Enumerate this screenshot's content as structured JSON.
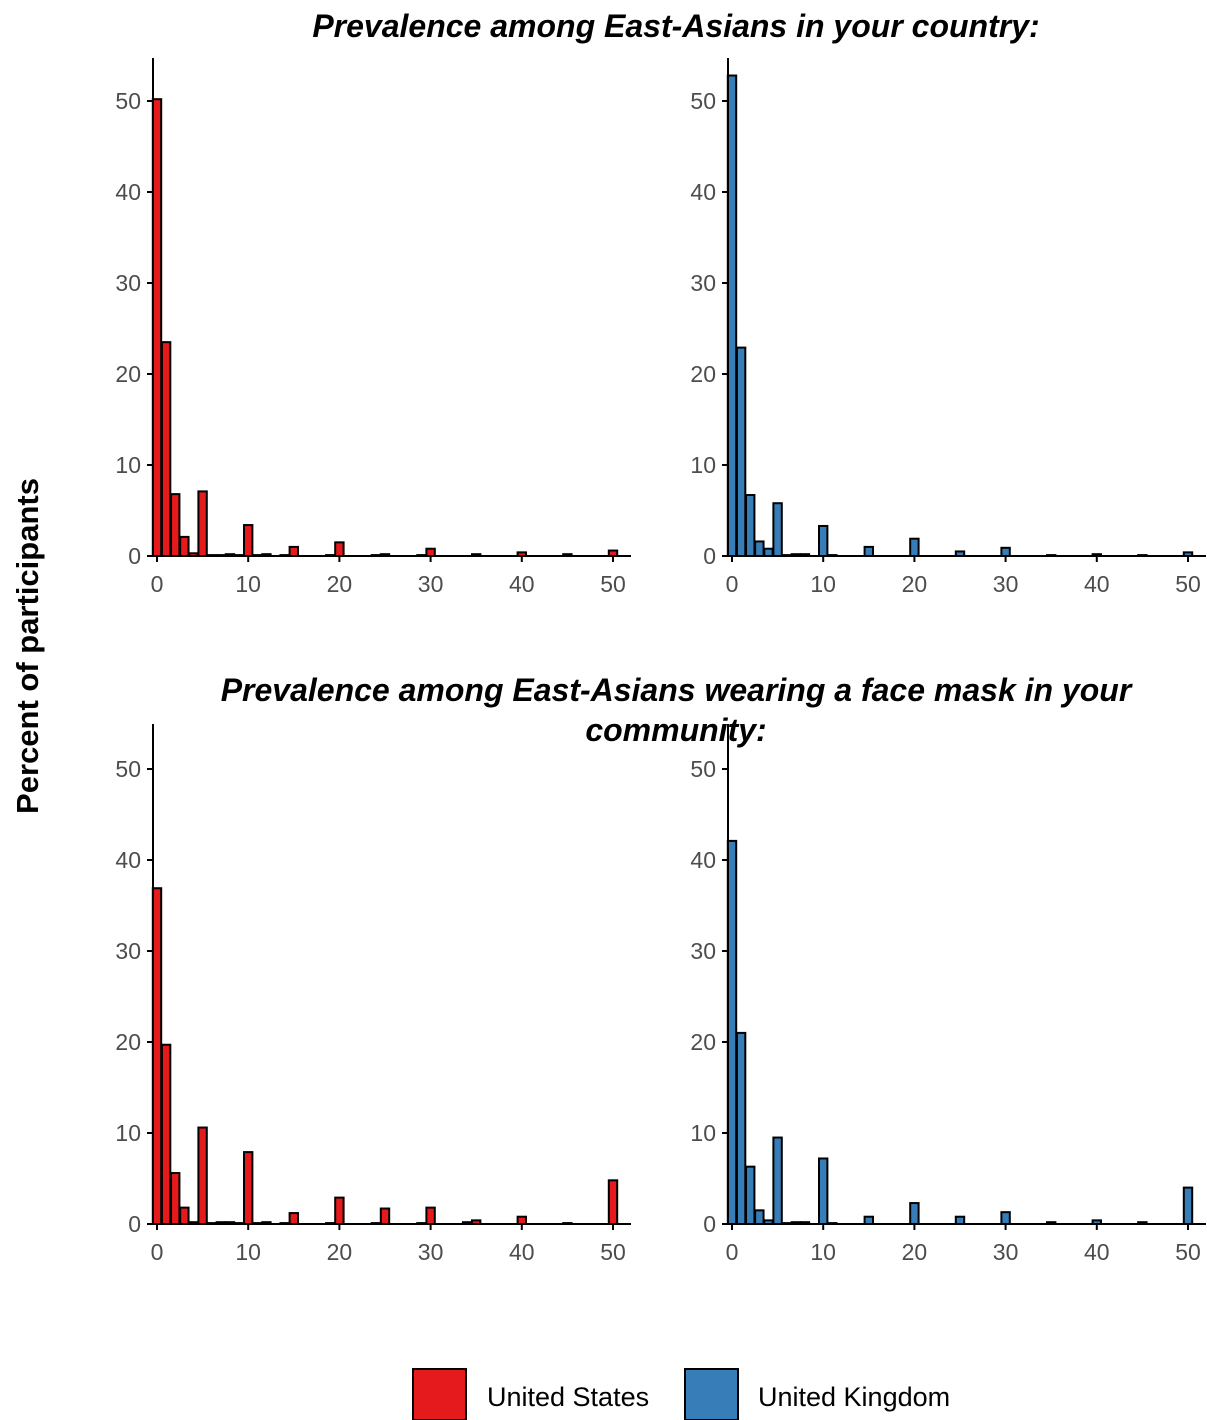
{
  "ylabel": "Percent of participants",
  "colors": {
    "United States": "#e41a1c",
    "United Kingdom": "#377eb8"
  },
  "legend": [
    {
      "name": "United States",
      "color": "#e41a1c"
    },
    {
      "name": "United Kingdom",
      "color": "#377eb8"
    }
  ],
  "chart_data": [
    {
      "type": "bar",
      "title": "Prevalence among East-Asians in your country:",
      "series_name": "United States",
      "xlim": [
        0,
        50
      ],
      "ylim": [
        0,
        55
      ],
      "xticks": [
        "0",
        "10",
        "20",
        "30",
        "40",
        "50"
      ],
      "yticks": [
        "0",
        "10",
        "20",
        "30",
        "40",
        "50"
      ],
      "x": [
        0,
        1,
        2,
        3,
        4,
        5,
        6,
        7,
        8,
        9,
        10,
        11,
        12,
        13,
        14,
        15,
        16,
        17,
        18,
        19,
        20,
        21,
        22,
        23,
        24,
        25,
        26,
        27,
        28,
        29,
        30,
        31,
        32,
        33,
        34,
        35,
        36,
        37,
        38,
        39,
        40,
        41,
        42,
        43,
        44,
        45,
        46,
        47,
        48,
        49,
        50
      ],
      "values": [
        50.2,
        23.5,
        6.8,
        2.1,
        0.3,
        7.1,
        0.1,
        0.1,
        0.2,
        0.1,
        3.4,
        0.1,
        0.2,
        0,
        0.1,
        1.0,
        0,
        0,
        0,
        0.1,
        1.5,
        0,
        0,
        0,
        0.1,
        0.2,
        0,
        0,
        0,
        0.1,
        0.8,
        0,
        0,
        0,
        0,
        0.2,
        0,
        0,
        0,
        0,
        0.4,
        0,
        0,
        0,
        0,
        0.2,
        0,
        0,
        0,
        0,
        0.6
      ]
    },
    {
      "type": "bar",
      "title": "Prevalence among East-Asians in your country:",
      "series_name": "United Kingdom",
      "xlim": [
        0,
        50
      ],
      "ylim": [
        0,
        55
      ],
      "xticks": [
        "0",
        "10",
        "20",
        "30",
        "40",
        "50"
      ],
      "yticks": [
        "0",
        "10",
        "20",
        "30",
        "40",
        "50"
      ],
      "x": [
        0,
        1,
        2,
        3,
        4,
        5,
        6,
        7,
        8,
        9,
        10,
        11,
        12,
        13,
        14,
        15,
        16,
        17,
        18,
        19,
        20,
        21,
        22,
        23,
        24,
        25,
        26,
        27,
        28,
        29,
        30,
        31,
        32,
        33,
        34,
        35,
        36,
        37,
        38,
        39,
        40,
        41,
        42,
        43,
        44,
        45,
        46,
        47,
        48,
        49,
        50
      ],
      "values": [
        52.8,
        22.9,
        6.7,
        1.6,
        0.8,
        5.8,
        0.1,
        0.2,
        0.2,
        0,
        3.3,
        0.1,
        0,
        0,
        0,
        1.0,
        0,
        0,
        0,
        0,
        1.9,
        0,
        0,
        0,
        0,
        0.5,
        0,
        0,
        0,
        0,
        0.9,
        0,
        0,
        0,
        0,
        0.1,
        0,
        0,
        0,
        0,
        0.2,
        0,
        0,
        0,
        0,
        0.1,
        0,
        0,
        0,
        0,
        0.4
      ]
    },
    {
      "type": "bar",
      "title": "Prevalence among East-Asians wearing a face mask in your community:",
      "series_name": "United States",
      "xlim": [
        0,
        50
      ],
      "ylim": [
        0,
        55
      ],
      "xticks": [
        "0",
        "10",
        "20",
        "30",
        "40",
        "50"
      ],
      "yticks": [
        "0",
        "10",
        "20",
        "30",
        "40",
        "50"
      ],
      "x": [
        0,
        1,
        2,
        3,
        4,
        5,
        6,
        7,
        8,
        9,
        10,
        11,
        12,
        13,
        14,
        15,
        16,
        17,
        18,
        19,
        20,
        21,
        22,
        23,
        24,
        25,
        26,
        27,
        28,
        29,
        30,
        31,
        32,
        33,
        34,
        35,
        36,
        37,
        38,
        39,
        40,
        41,
        42,
        43,
        44,
        45,
        46,
        47,
        48,
        49,
        50
      ],
      "values": [
        36.9,
        19.7,
        5.6,
        1.8,
        0.2,
        10.6,
        0.1,
        0.2,
        0.2,
        0.1,
        7.9,
        0.1,
        0.2,
        0,
        0.1,
        1.2,
        0,
        0,
        0,
        0.1,
        2.9,
        0,
        0,
        0,
        0.1,
        1.7,
        0,
        0,
        0,
        0.1,
        1.8,
        0,
        0,
        0,
        0.2,
        0.4,
        0,
        0,
        0,
        0,
        0.8,
        0,
        0,
        0,
        0,
        0.1,
        0,
        0,
        0,
        0,
        4.8
      ]
    },
    {
      "type": "bar",
      "title": "Prevalence among East-Asians wearing a face mask in your community:",
      "series_name": "United Kingdom",
      "xlim": [
        0,
        50
      ],
      "ylim": [
        0,
        55
      ],
      "xticks": [
        "0",
        "10",
        "20",
        "30",
        "40",
        "50"
      ],
      "yticks": [
        "0",
        "10",
        "20",
        "30",
        "40",
        "50"
      ],
      "x": [
        0,
        1,
        2,
        3,
        4,
        5,
        6,
        7,
        8,
        9,
        10,
        11,
        12,
        13,
        14,
        15,
        16,
        17,
        18,
        19,
        20,
        21,
        22,
        23,
        24,
        25,
        26,
        27,
        28,
        29,
        30,
        31,
        32,
        33,
        34,
        35,
        36,
        37,
        38,
        39,
        40,
        41,
        42,
        43,
        44,
        45,
        46,
        47,
        48,
        49,
        50
      ],
      "values": [
        42.1,
        21.0,
        6.3,
        1.5,
        0.4,
        9.5,
        0.1,
        0.2,
        0.2,
        0,
        7.2,
        0.1,
        0,
        0,
        0,
        0.8,
        0,
        0,
        0,
        0,
        2.3,
        0,
        0,
        0,
        0,
        0.8,
        0,
        0,
        0,
        0,
        1.3,
        0,
        0,
        0,
        0,
        0.2,
        0,
        0,
        0,
        0,
        0.4,
        0,
        0,
        0,
        0,
        0.2,
        0,
        0,
        0,
        0,
        4.0
      ]
    }
  ],
  "titles": {
    "top": "Prevalence among East-Asians in your country:",
    "bottom_line1": "Prevalence among East-Asians wearing a face mask in your",
    "bottom_line2": "community:"
  }
}
